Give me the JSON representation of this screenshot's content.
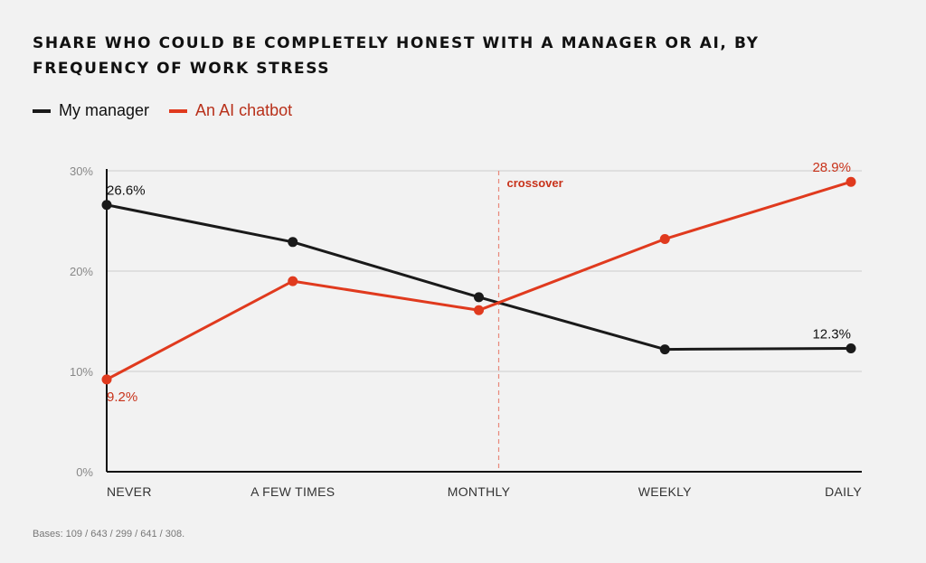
{
  "title": "SHARE WHO COULD BE COMPLETELY HONEST WITH A MANAGER OR AI, BY FREQUENCY OF WORK STRESS",
  "footnote": "Bases: 109 / 643 / 299 / 641 / 308.",
  "colors": {
    "manager": "#1a1a1a",
    "ai": "#e03a1e",
    "ai_label": "#c8321a",
    "grid": "#cccccc",
    "axis_text": "#888888",
    "crossover": "#e8887a"
  },
  "chart_data": {
    "type": "line",
    "categories": [
      "NEVER",
      "A FEW TIMES",
      "MONTHLY",
      "WEEKLY",
      "DAILY"
    ],
    "series": [
      {
        "name": "My manager",
        "values": [
          26.6,
          22.9,
          17.4,
          12.2,
          12.3
        ]
      },
      {
        "name": "An AI chatbot",
        "values": [
          9.2,
          19.0,
          16.1,
          23.2,
          28.9
        ]
      }
    ],
    "ylim": [
      0,
      30
    ],
    "yticks": [
      {
        "value": 0,
        "label": "0%"
      },
      {
        "value": 10,
        "label": "10%"
      },
      {
        "value": 20,
        "label": "20%"
      },
      {
        "value": 30,
        "label": "30%"
      }
    ],
    "grid": true,
    "legend_position": "top-left",
    "crossover": {
      "label": "crossover",
      "x_category": "MONTHLY"
    },
    "data_labels": [
      {
        "series": 0,
        "index": 0,
        "text": "26.6%"
      },
      {
        "series": 0,
        "index": 4,
        "text": "12.3%"
      },
      {
        "series": 1,
        "index": 0,
        "text": "9.2%"
      },
      {
        "series": 1,
        "index": 4,
        "text": "28.9%"
      }
    ]
  }
}
